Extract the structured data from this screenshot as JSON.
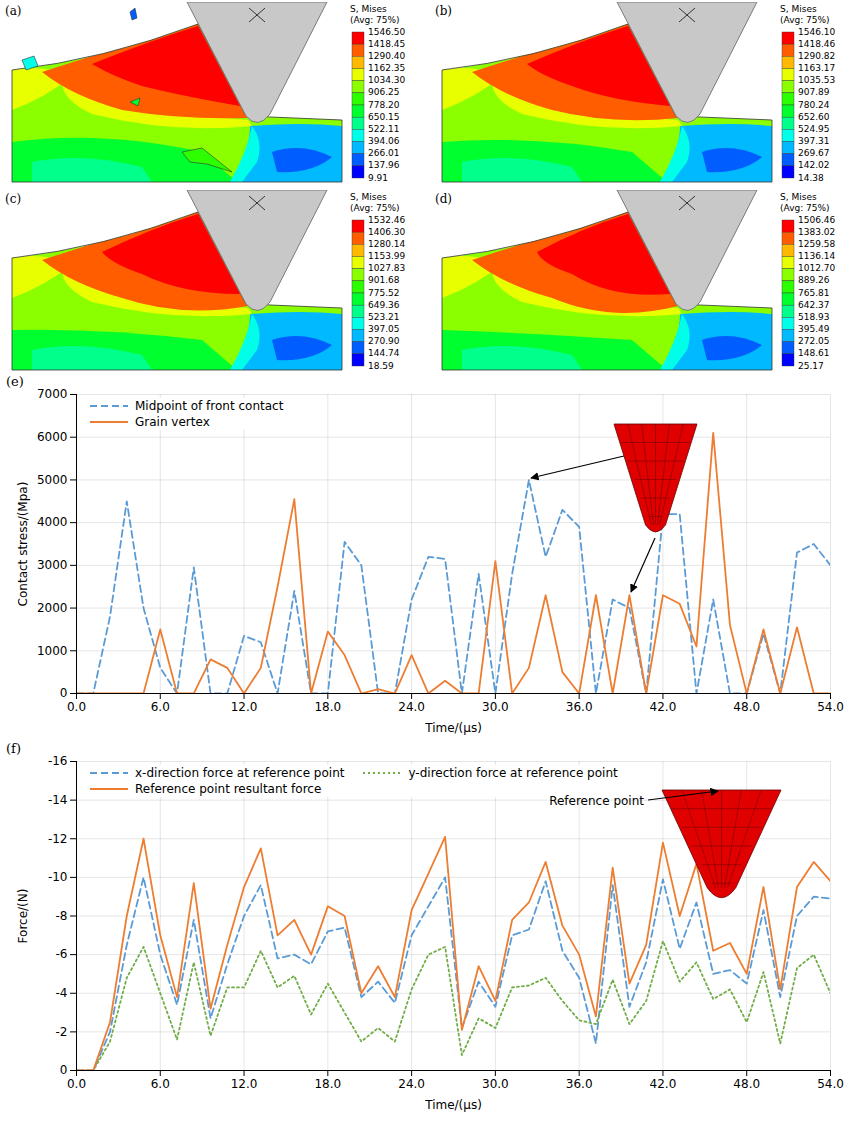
{
  "chart_data": [
    {
      "type": "contour",
      "panel": "(a)",
      "title": "S, Mises",
      "subtitle": "(Avg: 75%)",
      "colorbar_lim": [
        9.91,
        1546.5
      ],
      "colorbar_ticks": [
        {
          "value": 1546.5,
          "label": "1546.50"
        },
        {
          "value": 1418.45,
          "label": "1418.45"
        },
        {
          "value": 1290.4,
          "label": "1290.40"
        },
        {
          "value": 1162.35,
          "label": "1162.35"
        },
        {
          "value": 1034.3,
          "label": "1034.30"
        },
        {
          "value": 906.25,
          "label": "906.25"
        },
        {
          "value": 778.2,
          "label": "778.20"
        },
        {
          "value": 650.15,
          "label": "650.15"
        },
        {
          "value": 522.11,
          "label": "522.11"
        },
        {
          "value": 394.06,
          "label": "394.06"
        },
        {
          "value": 266.01,
          "label": "266.01"
        },
        {
          "value": 137.96,
          "label": "137.96"
        },
        {
          "value": 9.91,
          "label": "9.91"
        }
      ]
    },
    {
      "type": "contour",
      "panel": "(b)",
      "title": "S, Mises",
      "subtitle": "(Avg: 75%)",
      "colorbar_lim": [
        14.38,
        1546.1
      ],
      "colorbar_ticks": [
        {
          "value": 1546.1,
          "label": "1546.10"
        },
        {
          "value": 1418.46,
          "label": "1418.46"
        },
        {
          "value": 1290.82,
          "label": "1290.82"
        },
        {
          "value": 1163.17,
          "label": "1163.17"
        },
        {
          "value": 1035.53,
          "label": "1035.53"
        },
        {
          "value": 907.89,
          "label": "907.89"
        },
        {
          "value": 780.24,
          "label": "780.24"
        },
        {
          "value": 652.6,
          "label": "652.60"
        },
        {
          "value": 524.95,
          "label": "524.95"
        },
        {
          "value": 397.31,
          "label": "397.31"
        },
        {
          "value": 269.67,
          "label": "269.67"
        },
        {
          "value": 142.02,
          "label": "142.02"
        },
        {
          "value": 14.38,
          "label": "14.38"
        }
      ]
    },
    {
      "type": "contour",
      "panel": "(c)",
      "title": "S, Mises",
      "subtitle": "(Avg: 75%)",
      "colorbar_lim": [
        18.59,
        1532.46
      ],
      "colorbar_ticks": [
        {
          "value": 1532.46,
          "label": "1532.46"
        },
        {
          "value": 1406.3,
          "label": "1406.30"
        },
        {
          "value": 1280.14,
          "label": "1280.14"
        },
        {
          "value": 1153.99,
          "label": "1153.99"
        },
        {
          "value": 1027.83,
          "label": "1027.83"
        },
        {
          "value": 901.68,
          "label": "901.68"
        },
        {
          "value": 775.52,
          "label": "775.52"
        },
        {
          "value": 649.36,
          "label": "649.36"
        },
        {
          "value": 523.21,
          "label": "523.21"
        },
        {
          "value": 397.05,
          "label": "397.05"
        },
        {
          "value": 270.9,
          "label": "270.90"
        },
        {
          "value": 144.74,
          "label": "144.74"
        },
        {
          "value": 18.59,
          "label": "18.59"
        }
      ]
    },
    {
      "type": "contour",
      "panel": "(d)",
      "title": "S, Mises",
      "subtitle": "(Avg: 75%)",
      "colorbar_lim": [
        25.17,
        1506.46
      ],
      "colorbar_ticks": [
        {
          "value": 1506.46,
          "label": "1506.46"
        },
        {
          "value": 1383.02,
          "label": "1383.02"
        },
        {
          "value": 1259.58,
          "label": "1259.58"
        },
        {
          "value": 1136.14,
          "label": "1136.14"
        },
        {
          "value": 1012.7,
          "label": "1012.70"
        },
        {
          "value": 889.26,
          "label": "889.26"
        },
        {
          "value": 765.81,
          "label": "765.81"
        },
        {
          "value": 642.37,
          "label": "642.37"
        },
        {
          "value": 518.93,
          "label": "518.93"
        },
        {
          "value": 395.49,
          "label": "395.49"
        },
        {
          "value": 272.05,
          "label": "272.05"
        },
        {
          "value": 148.61,
          "label": "148.61"
        },
        {
          "value": 25.17,
          "label": "25.17"
        }
      ]
    },
    {
      "type": "line",
      "panel": "(e)",
      "xlabel": "Time/(μs)",
      "ylabel": "Contact stress/(Mpa)",
      "grid": true,
      "legend": "top-left",
      "xlim": [
        0,
        54
      ],
      "xticks": [
        {
          "value": 0,
          "label": "0.0"
        },
        {
          "value": 6,
          "label": "6.0"
        },
        {
          "value": 12,
          "label": "12.0"
        },
        {
          "value": 18,
          "label": "18.0"
        },
        {
          "value": 24,
          "label": "24.0"
        },
        {
          "value": 30,
          "label": "30.0"
        },
        {
          "value": 36,
          "label": "36.0"
        },
        {
          "value": 42,
          "label": "42.0"
        },
        {
          "value": 48,
          "label": "48.0"
        },
        {
          "value": 54,
          "label": "54.0"
        }
      ],
      "ylim": [
        0,
        7000
      ],
      "yticks": [
        0,
        1000,
        2000,
        3000,
        4000,
        5000,
        6000,
        7000
      ],
      "x": [
        0,
        1.2,
        2.4,
        3.6,
        4.8,
        6,
        7.2,
        8.4,
        9.6,
        10.8,
        12,
        13.2,
        14.4,
        15.6,
        16.8,
        18,
        19.2,
        20.4,
        21.6,
        22.8,
        24,
        25.2,
        26.4,
        27.6,
        28.8,
        30,
        31.2,
        32.4,
        33.6,
        34.8,
        36,
        37.2,
        38.4,
        39.6,
        40.8,
        42,
        43.2,
        44.4,
        45.6,
        46.8,
        48,
        49.2,
        50.4,
        51.6,
        52.8,
        54
      ],
      "series": [
        {
          "name": "Midpoint of front contact",
          "color": "#5b9bd5",
          "line_style": "dashed",
          "values": [
            0,
            0,
            1800,
            4500,
            2000,
            600,
            0,
            2950,
            0,
            0,
            1350,
            1200,
            0,
            2400,
            0,
            0,
            3550,
            3000,
            0,
            0,
            2200,
            3200,
            3150,
            0,
            2800,
            0,
            2800,
            5000,
            3200,
            4300,
            3900,
            0,
            2200,
            2000,
            0,
            4200,
            4200,
            0,
            2200,
            0,
            0,
            1400,
            0,
            3300,
            3500,
            3000
          ]
        },
        {
          "name": "Grain vertex",
          "color": "#ed7d31",
          "line_style": "solid",
          "values": [
            0,
            0,
            0,
            0,
            0,
            1500,
            0,
            0,
            800,
            600,
            0,
            600,
            2500,
            4550,
            0,
            1450,
            900,
            0,
            100,
            0,
            900,
            0,
            300,
            0,
            0,
            3100,
            0,
            600,
            2300,
            500,
            0,
            2300,
            0,
            2300,
            0,
            2300,
            2100,
            1100,
            6100,
            1600,
            0,
            1500,
            0,
            1550,
            0,
            0
          ]
        }
      ]
    },
    {
      "type": "line",
      "panel": "(f)",
      "xlabel": "Time/(μs)",
      "ylabel": "Force/(N)",
      "grid": true,
      "legend": "top-left",
      "annotations": [
        "Reference point"
      ],
      "xlim": [
        0,
        54
      ],
      "xticks": [
        {
          "value": 0,
          "label": "0.0"
        },
        {
          "value": 6,
          "label": "6.0"
        },
        {
          "value": 12,
          "label": "12.0"
        },
        {
          "value": 18,
          "label": "18.0"
        },
        {
          "value": 24,
          "label": "24.0"
        },
        {
          "value": 30,
          "label": "30.0"
        },
        {
          "value": 36,
          "label": "36.0"
        },
        {
          "value": 42,
          "label": "42.0"
        },
        {
          "value": 48,
          "label": "48.0"
        },
        {
          "value": 54,
          "label": "54.0"
        }
      ],
      "ylim": [
        0,
        -16
      ],
      "yticks": [
        0,
        -2,
        -4,
        -6,
        -8,
        -10,
        -12,
        -14,
        -16
      ],
      "x": [
        0,
        1.2,
        2.4,
        3.6,
        4.8,
        6,
        7.2,
        8.4,
        9.6,
        10.8,
        12,
        13.2,
        14.4,
        15.6,
        16.8,
        18,
        19.2,
        20.4,
        21.6,
        22.8,
        24,
        25.2,
        26.4,
        27.6,
        28.8,
        30,
        31.2,
        32.4,
        33.6,
        34.8,
        36,
        37.2,
        38.4,
        39.6,
        40.8,
        42,
        43.2,
        44.4,
        45.6,
        46.8,
        48,
        49.2,
        50.4,
        51.6,
        52.8,
        54
      ],
      "series": [
        {
          "name": "x-direction force at reference point",
          "color": "#5b9bd5",
          "line_style": "dashed",
          "values": [
            0,
            0,
            -2,
            -6.5,
            -10,
            -6,
            -3.4,
            -7.8,
            -2.7,
            -5.5,
            -8,
            -9.6,
            -5.8,
            -6,
            -5.5,
            -7.2,
            -7.4,
            -3.8,
            -4.6,
            -3.5,
            -7,
            -8.5,
            -10,
            -2.2,
            -4.6,
            -3.3,
            -7,
            -7.3,
            -9.8,
            -6.2,
            -4.8,
            -1.4,
            -9.6,
            -3.3,
            -5.6,
            -9.9,
            -6.3,
            -8.7,
            -5,
            -5.2,
            -4.5,
            -8.3,
            -3.8,
            -8,
            -9,
            -8.9
          ]
        },
        {
          "name": "y-direction force at reference point",
          "color": "#70ad47",
          "line_style": "dotted",
          "values": [
            0,
            0,
            -1.5,
            -4.8,
            -6.4,
            -4,
            -1.6,
            -5.6,
            -1.8,
            -4.3,
            -4.3,
            -6.2,
            -4.3,
            -4.9,
            -2.9,
            -4.5,
            -3,
            -1.5,
            -2.2,
            -1.5,
            -4.2,
            -6,
            -6.4,
            -0.8,
            -2.7,
            -2.2,
            -4.3,
            -4.4,
            -4.8,
            -3.6,
            -2.6,
            -2.4,
            -4.7,
            -2.4,
            -3.6,
            -6.7,
            -4.6,
            -5.6,
            -3.7,
            -4.2,
            -2.5,
            -5.1,
            -1.4,
            -5.3,
            -6,
            -4
          ]
        },
        {
          "name": "Reference point resultant force",
          "color": "#ed7d31",
          "line_style": "solid",
          "values": [
            0,
            0,
            -2.5,
            -8,
            -12,
            -7,
            -3.8,
            -9.7,
            -3.2,
            -6.5,
            -9.5,
            -11.5,
            -7,
            -7.8,
            -6,
            -8.5,
            -8,
            -4,
            -5.4,
            -3.8,
            -8.3,
            -10.2,
            -12.1,
            -2.1,
            -5.4,
            -3.6,
            -7.8,
            -8.7,
            -10.8,
            -7.5,
            -6,
            -2.8,
            -10.5,
            -4.5,
            -6.5,
            -11.8,
            -8,
            -10.7,
            -6.2,
            -6.6,
            -5,
            -9.5,
            -4.2,
            -9.5,
            -10.8,
            -9.8
          ]
        }
      ]
    }
  ]
}
